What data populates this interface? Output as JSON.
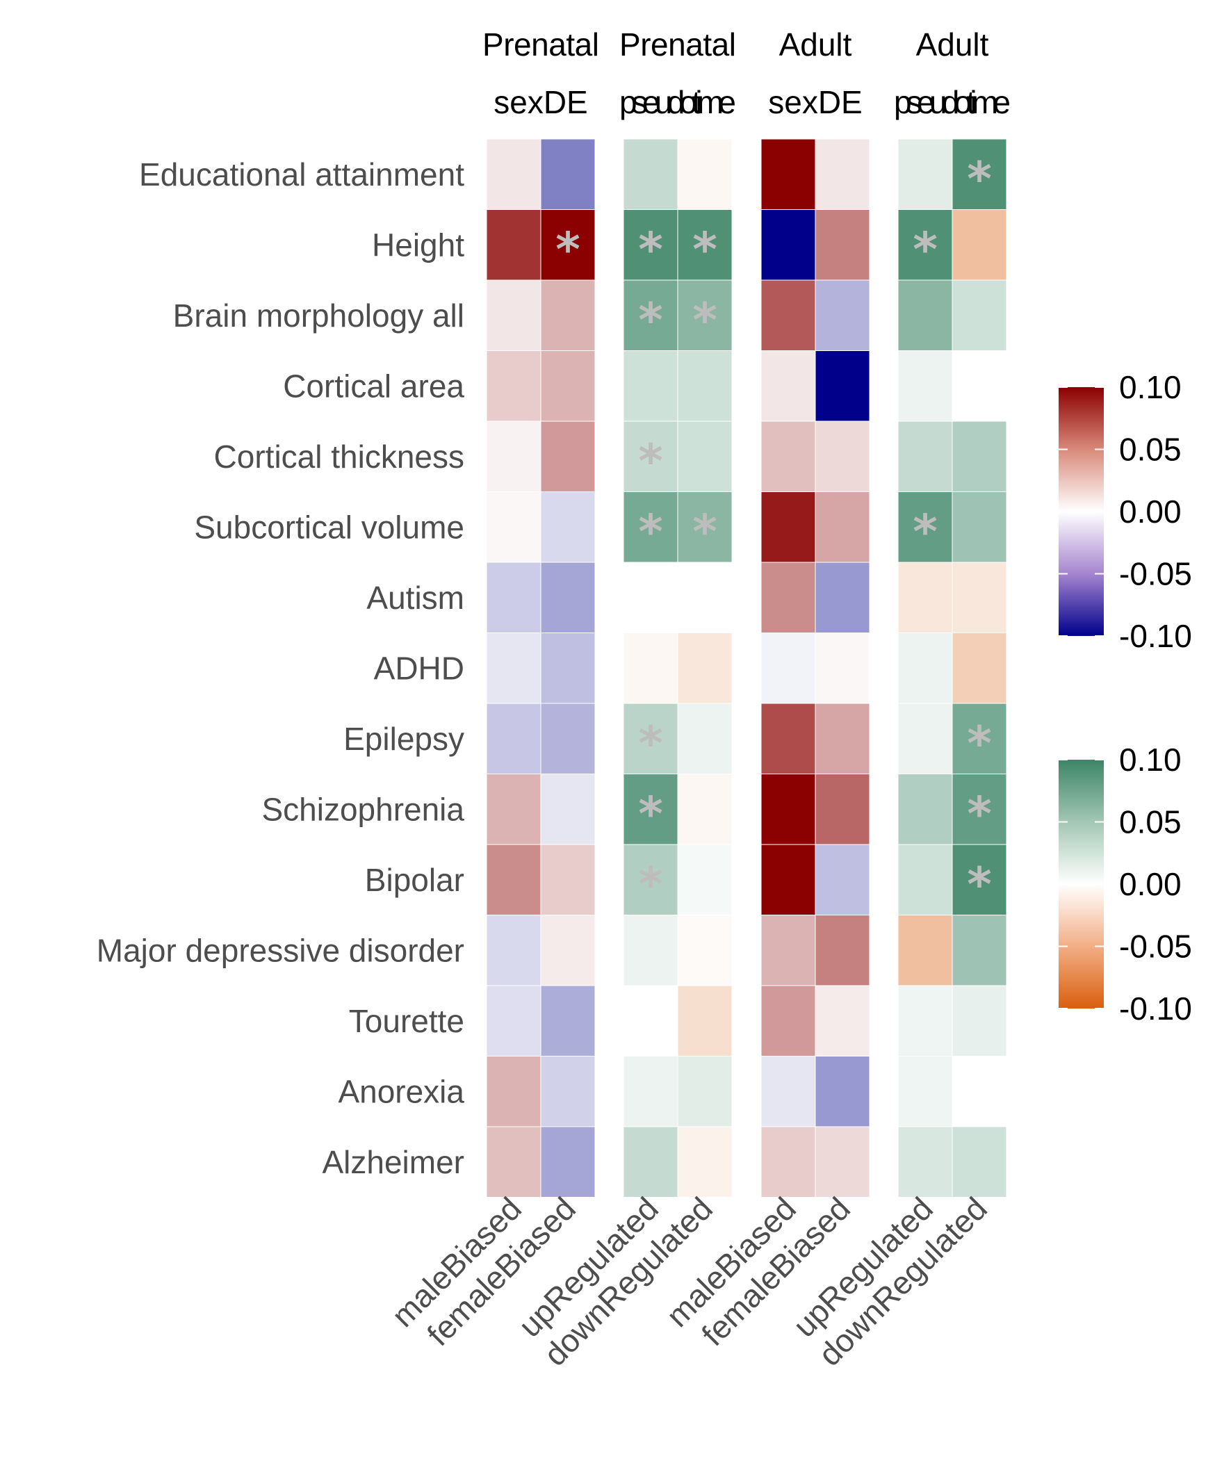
{
  "chart_data": {
    "type": "heatmap",
    "rows": [
      "Educational attainment",
      "Height",
      "Brain morphology all",
      "Cortical area",
      "Cortical thickness",
      "Subcortical volume",
      "Autism",
      "ADHD",
      "Epilepsy",
      "Schizophrenia",
      "Bipolar",
      "Major depressive disorder",
      "Tourette",
      "Anorexia",
      "Alzheimer"
    ],
    "panels": [
      {
        "title": [
          "Prenatal",
          "sexDE"
        ],
        "scale": "sex",
        "columns": [
          "maleBiased",
          "femaleBiased"
        ],
        "values": [
          [
            0.01,
            -0.05
          ],
          [
            0.08,
            0.1
          ],
          [
            0.01,
            0.03
          ],
          [
            0.02,
            0.03
          ],
          [
            0.005,
            0.04
          ],
          [
            0.003,
            -0.015
          ],
          [
            -0.02,
            -0.035
          ],
          [
            -0.01,
            -0.025
          ],
          [
            -0.022,
            -0.03
          ],
          [
            0.03,
            -0.01
          ],
          [
            0.045,
            0.02
          ],
          [
            -0.015,
            0.008
          ],
          [
            -0.013,
            -0.032
          ],
          [
            0.03,
            -0.018
          ],
          [
            0.025,
            -0.035
          ]
        ],
        "significant": [
          [
            false,
            false
          ],
          [
            false,
            true
          ],
          [
            false,
            false
          ],
          [
            false,
            false
          ],
          [
            false,
            false
          ],
          [
            false,
            false
          ],
          [
            false,
            false
          ],
          [
            false,
            false
          ],
          [
            false,
            false
          ],
          [
            false,
            false
          ],
          [
            false,
            false
          ],
          [
            false,
            false
          ],
          [
            false,
            false
          ],
          [
            false,
            false
          ],
          [
            false,
            false
          ]
        ]
      },
      {
        "title": [
          "Prenatal",
          "pseudotime"
        ],
        "scale": "time",
        "columns": [
          "upRegulated",
          "downRegulated"
        ],
        "values": [
          [
            0.03,
            -0.005
          ],
          [
            0.09,
            0.09
          ],
          [
            0.07,
            0.06
          ],
          [
            0.025,
            0.025
          ],
          [
            0.03,
            0.025
          ],
          [
            0.07,
            0.06
          ],
          [
            0.0,
            0.0
          ],
          [
            -0.005,
            -0.015
          ],
          [
            0.035,
            0.01
          ],
          [
            0.08,
            -0.005
          ],
          [
            0.04,
            0.005
          ],
          [
            0.01,
            -0.003
          ],
          [
            0.0,
            -0.02
          ],
          [
            0.01,
            0.015
          ],
          [
            0.03,
            -0.008
          ]
        ],
        "significant": [
          [
            false,
            false
          ],
          [
            true,
            true
          ],
          [
            true,
            true
          ],
          [
            false,
            false
          ],
          [
            true,
            false
          ],
          [
            true,
            true
          ],
          [
            false,
            false
          ],
          [
            false,
            false
          ],
          [
            true,
            false
          ],
          [
            true,
            false
          ],
          [
            true,
            false
          ],
          [
            false,
            false
          ],
          [
            false,
            false
          ],
          [
            false,
            false
          ],
          [
            false,
            false
          ]
        ]
      },
      {
        "title": [
          "Adult",
          "sexDE"
        ],
        "scale": "sex",
        "columns": [
          "maleBiased",
          "femaleBiased"
        ],
        "values": [
          [
            0.1,
            0.01
          ],
          [
            -0.1,
            0.05
          ],
          [
            0.065,
            -0.03
          ],
          [
            0.01,
            -0.1
          ],
          [
            0.025,
            0.015
          ],
          [
            0.09,
            0.035
          ],
          [
            0.045,
            -0.04
          ],
          [
            -0.005,
            0.003
          ],
          [
            0.07,
            0.035
          ],
          [
            0.1,
            0.06
          ],
          [
            0.1,
            -0.025
          ],
          [
            0.03,
            0.05
          ],
          [
            0.04,
            0.008
          ],
          [
            -0.01,
            -0.04
          ],
          [
            0.02,
            0.015
          ]
        ],
        "significant": [
          [
            false,
            false
          ],
          [
            false,
            false
          ],
          [
            false,
            false
          ],
          [
            false,
            false
          ],
          [
            false,
            false
          ],
          [
            false,
            false
          ],
          [
            false,
            false
          ],
          [
            false,
            false
          ],
          [
            false,
            false
          ],
          [
            false,
            false
          ],
          [
            false,
            false
          ],
          [
            false,
            false
          ],
          [
            false,
            false
          ],
          [
            false,
            false
          ],
          [
            false,
            false
          ]
        ]
      },
      {
        "title": [
          "Adult",
          "pseudotime"
        ],
        "scale": "time",
        "columns": [
          "upRegulated",
          "downRegulated"
        ],
        "values": [
          [
            0.015,
            0.09
          ],
          [
            0.09,
            -0.04
          ],
          [
            0.06,
            0.025
          ],
          [
            0.01,
            null
          ],
          [
            0.03,
            0.04
          ],
          [
            0.08,
            0.05
          ],
          [
            -0.015,
            -0.015
          ],
          [
            0.01,
            -0.03
          ],
          [
            0.01,
            0.07
          ],
          [
            0.04,
            0.08
          ],
          [
            0.025,
            0.09
          ],
          [
            -0.04,
            0.05
          ],
          [
            0.008,
            0.012
          ],
          [
            0.008,
            null
          ],
          [
            0.02,
            0.025
          ]
        ],
        "significant": [
          [
            false,
            true
          ],
          [
            true,
            false
          ],
          [
            false,
            false
          ],
          [
            false,
            false
          ],
          [
            false,
            false
          ],
          [
            true,
            false
          ],
          [
            false,
            false
          ],
          [
            false,
            false
          ],
          [
            false,
            true
          ],
          [
            false,
            true
          ],
          [
            false,
            true
          ],
          [
            false,
            false
          ],
          [
            false,
            false
          ],
          [
            false,
            false
          ],
          [
            false,
            false
          ]
        ]
      }
    ],
    "significance_symbol": "*",
    "legends": [
      {
        "scale": "sex",
        "ticks": [
          "0.10",
          "0.05",
          "0.00",
          "-0.05",
          "-0.10"
        ],
        "range": [
          -0.1,
          0.1
        ],
        "high_color": "#8b0000",
        "mid_color": "#ffffff",
        "low_color": "#00008b"
      },
      {
        "scale": "time",
        "ticks": [
          "0.10",
          "0.05",
          "0.00",
          "-0.05",
          "-0.10"
        ],
        "range": [
          -0.1,
          0.1
        ],
        "high_color": "#3c8566",
        "mid_color": "#ffffff",
        "low_color": "#d95f0e"
      }
    ]
  }
}
